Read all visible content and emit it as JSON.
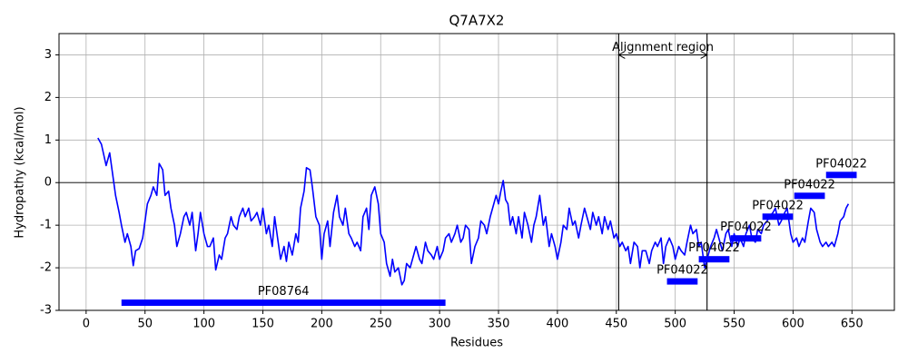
{
  "chart_data": {
    "type": "line",
    "title": "Q7A7X2",
    "x_label": "Residues",
    "y_label": "Hydropathy (kcal/mol)",
    "xlim": [
      -23,
      686
    ],
    "ylim": [
      -3,
      3.5
    ],
    "xticks": [
      0,
      50,
      100,
      150,
      200,
      250,
      300,
      350,
      400,
      450,
      500,
      550,
      600,
      650
    ],
    "yticks": [
      -3,
      -2,
      -1,
      0,
      1,
      2,
      3
    ],
    "grid": true,
    "hline": 0,
    "vlines": [
      452,
      527
    ],
    "annotation": {
      "text": "Alignment region",
      "x": [
        452,
        527
      ],
      "y": 3
    },
    "x": [
      10,
      13,
      17,
      20,
      22,
      25,
      28,
      30,
      33,
      35,
      38,
      40,
      42,
      45,
      48,
      50,
      52,
      55,
      57,
      60,
      62,
      65,
      67,
      70,
      72,
      75,
      77,
      80,
      83,
      85,
      88,
      90,
      93,
      95,
      97,
      100,
      103,
      105,
      108,
      110,
      113,
      115,
      118,
      120,
      123,
      125,
      128,
      130,
      133,
      135,
      138,
      140,
      143,
      145,
      148,
      150,
      153,
      155,
      158,
      160,
      163,
      165,
      168,
      170,
      172,
      175,
      178,
      180,
      182,
      185,
      187,
      190,
      192,
      195,
      198,
      200,
      202,
      205,
      207,
      210,
      213,
      215,
      218,
      220,
      223,
      225,
      228,
      230,
      233,
      235,
      238,
      240,
      242,
      245,
      248,
      250,
      253,
      255,
      258,
      260,
      262,
      265,
      268,
      270,
      272,
      275,
      278,
      280,
      283,
      285,
      288,
      290,
      293,
      295,
      298,
      300,
      303,
      305,
      308,
      310,
      313,
      315,
      318,
      320,
      322,
      325,
      327,
      330,
      333,
      335,
      338,
      340,
      343,
      345,
      348,
      350,
      352,
      354,
      356,
      358,
      360,
      362,
      365,
      367,
      370,
      372,
      375,
      378,
      380,
      382,
      385,
      388,
      390,
      393,
      395,
      398,
      400,
      403,
      405,
      408,
      410,
      413,
      415,
      418,
      420,
      423,
      425,
      428,
      430,
      433,
      435,
      438,
      440,
      443,
      445,
      448,
      450,
      453,
      455,
      458,
      460,
      462,
      465,
      468,
      470,
      472,
      475,
      478,
      480,
      483,
      485,
      488,
      490,
      492,
      495,
      498,
      500,
      503,
      505,
      508,
      510,
      513,
      515,
      518,
      520,
      522,
      525,
      528,
      530,
      533,
      535,
      538,
      540,
      543,
      545,
      548,
      550,
      553,
      555,
      558,
      560,
      563,
      565,
      568,
      570,
      573,
      575,
      578,
      580,
      583,
      585,
      588,
      590,
      593,
      595,
      598,
      600,
      603,
      605,
      608,
      610,
      613,
      615,
      618,
      620,
      623,
      625,
      628,
      630,
      633,
      635,
      638,
      640,
      643,
      645,
      647
    ],
    "series": [
      {
        "color": "#0000ff",
        "values": [
          1.05,
          0.9,
          0.4,
          0.7,
          0.3,
          -0.3,
          -0.7,
          -1.0,
          -1.4,
          -1.2,
          -1.5,
          -1.95,
          -1.6,
          -1.55,
          -1.3,
          -0.9,
          -0.5,
          -0.3,
          -0.1,
          -0.3,
          0.45,
          0.3,
          -0.3,
          -0.2,
          -0.6,
          -1.0,
          -1.5,
          -1.2,
          -0.8,
          -0.7,
          -1.0,
          -0.7,
          -1.6,
          -1.2,
          -0.7,
          -1.2,
          -1.5,
          -1.5,
          -1.3,
          -2.05,
          -1.7,
          -1.8,
          -1.3,
          -1.2,
          -0.8,
          -1.0,
          -1.1,
          -0.8,
          -0.6,
          -0.8,
          -0.6,
          -0.9,
          -0.8,
          -0.7,
          -1.0,
          -0.6,
          -1.2,
          -1.0,
          -1.5,
          -0.8,
          -1.4,
          -1.8,
          -1.5,
          -1.85,
          -1.4,
          -1.7,
          -1.2,
          -1.4,
          -0.6,
          -0.2,
          0.35,
          0.3,
          -0.1,
          -0.8,
          -1.0,
          -1.8,
          -1.2,
          -0.9,
          -1.5,
          -0.7,
          -0.3,
          -0.8,
          -1.0,
          -0.6,
          -1.2,
          -1.3,
          -1.5,
          -1.4,
          -1.6,
          -0.8,
          -0.6,
          -1.1,
          -0.3,
          -0.1,
          -0.5,
          -1.2,
          -1.4,
          -1.9,
          -2.2,
          -1.8,
          -2.1,
          -2.0,
          -2.4,
          -2.3,
          -1.9,
          -2.0,
          -1.7,
          -1.5,
          -1.8,
          -1.9,
          -1.4,
          -1.6,
          -1.7,
          -1.8,
          -1.5,
          -1.8,
          -1.6,
          -1.3,
          -1.2,
          -1.4,
          -1.2,
          -1.0,
          -1.4,
          -1.3,
          -1.0,
          -1.1,
          -1.9,
          -1.5,
          -1.3,
          -0.9,
          -1.0,
          -1.2,
          -0.8,
          -0.6,
          -0.3,
          -0.5,
          -0.2,
          0.05,
          -0.4,
          -0.5,
          -1.0,
          -0.8,
          -1.2,
          -0.8,
          -1.3,
          -0.7,
          -1.0,
          -1.4,
          -1.0,
          -0.8,
          -0.3,
          -1.0,
          -0.8,
          -1.5,
          -1.2,
          -1.5,
          -1.8,
          -1.4,
          -1.0,
          -1.1,
          -0.6,
          -1.0,
          -0.9,
          -1.3,
          -1.0,
          -0.6,
          -0.8,
          -1.1,
          -0.7,
          -1.0,
          -0.8,
          -1.2,
          -0.8,
          -1.1,
          -0.9,
          -1.3,
          -1.2,
          -1.5,
          -1.4,
          -1.6,
          -1.5,
          -1.9,
          -1.4,
          -1.5,
          -2.0,
          -1.6,
          -1.6,
          -1.9,
          -1.6,
          -1.4,
          -1.5,
          -1.3,
          -1.9,
          -1.5,
          -1.3,
          -1.5,
          -1.8,
          -1.5,
          -1.6,
          -1.7,
          -1.4,
          -1.0,
          -1.2,
          -1.1,
          -1.5,
          -1.4,
          -2.0,
          -1.7,
          -1.5,
          -1.3,
          -1.1,
          -1.4,
          -1.6,
          -1.2,
          -1.1,
          -1.5,
          -1.2,
          -1.5,
          -1.3,
          -1.5,
          -1.2,
          -1.0,
          -1.3,
          -1.4,
          -1.1,
          -1.2,
          -1.0,
          -0.9,
          -0.8,
          -0.7,
          -0.6,
          -1.0,
          -0.9,
          -0.7,
          -0.6,
          -1.2,
          -1.4,
          -1.3,
          -1.5,
          -1.3,
          -1.4,
          -0.9,
          -0.6,
          -0.7,
          -1.1,
          -1.4,
          -1.5,
          -1.4,
          -1.5,
          -1.4,
          -1.5,
          -1.2,
          -0.9,
          -0.8,
          -0.6,
          -0.5
        ]
      }
    ],
    "domains": [
      {
        "name": "PF08764",
        "start": 30,
        "end": 305,
        "y": -2.82
      },
      {
        "name": "PF04022",
        "start": 493,
        "end": 519,
        "y": -2.32
      },
      {
        "name": "PF04022",
        "start": 520,
        "end": 546,
        "y": -1.8
      },
      {
        "name": "PF04022",
        "start": 547,
        "end": 573,
        "y": -1.31
      },
      {
        "name": "PF04022",
        "start": 574,
        "end": 600,
        "y": -0.8
      },
      {
        "name": "PF04022",
        "start": 601,
        "end": 627,
        "y": -0.31
      },
      {
        "name": "PF04022",
        "start": 628,
        "end": 654,
        "y": 0.18
      }
    ],
    "domain_color": "#0000ff"
  }
}
